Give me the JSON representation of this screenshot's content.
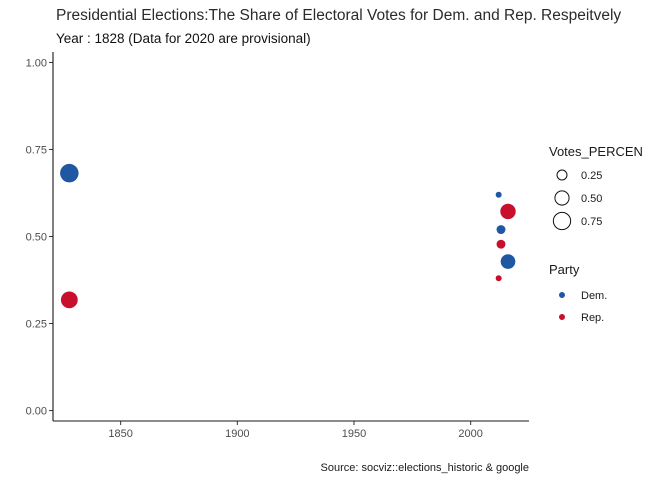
{
  "chart_data": {
    "type": "scatter",
    "title": "Presidential Elections:The Share of Electoral Votes for Dem. and Rep. Respeitvely",
    "subtitle": "Year : 1828 (Data for 2020 are provisional)",
    "caption": "Source: socviz::elections_historic & google",
    "xlabel": "",
    "ylabel": "",
    "xlim": [
      1821,
      2025
    ],
    "ylim": [
      -0.03,
      1.03
    ],
    "x_ticks": [
      1850,
      1900,
      1950,
      2000
    ],
    "y_ticks": [
      0.0,
      0.25,
      0.5,
      0.75,
      1.0
    ],
    "x_tick_labels": [
      "1850",
      "1900",
      "1950",
      "2000"
    ],
    "y_tick_labels": [
      "0.00",
      "0.25",
      "0.50",
      "0.75",
      "1.00"
    ],
    "grid": false,
    "legend_position": "right",
    "size_legend": {
      "title": "Votes_PERCEN",
      "values": [
        0.25,
        0.5,
        0.75
      ],
      "labels": [
        "0.25",
        "0.50",
        "0.75"
      ]
    },
    "color_legend": {
      "title": "Party",
      "labels": [
        "Dem.",
        "Rep."
      ]
    },
    "series": [
      {
        "name": "Dem.",
        "color": "#1f57a3",
        "points": [
          {
            "x": 1828,
            "y": 0.682,
            "size": 0.682
          },
          {
            "x": 2013,
            "y": 0.52,
            "size": 0.12
          },
          {
            "x": 2012,
            "y": 0.62,
            "size": 0.04
          },
          {
            "x": 2016,
            "y": 0.428,
            "size": 0.4
          }
        ]
      },
      {
        "name": "Rep.",
        "color": "#c8102e",
        "points": [
          {
            "x": 1828,
            "y": 0.318,
            "size": 0.55
          },
          {
            "x": 2016,
            "y": 0.572,
            "size": 0.45
          },
          {
            "x": 2013,
            "y": 0.478,
            "size": 0.12
          },
          {
            "x": 2012,
            "y": 0.38,
            "size": 0.04
          }
        ]
      }
    ]
  }
}
